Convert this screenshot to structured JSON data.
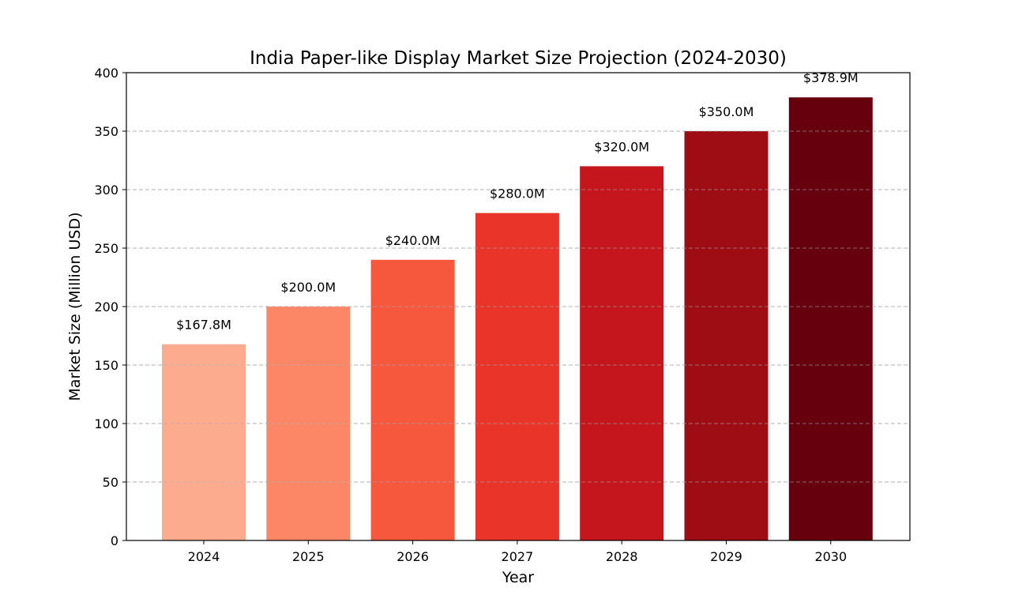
{
  "chart_data": {
    "type": "bar",
    "title": "India Paper-like Display Market Size Projection (2024-2030)",
    "xlabel": "Year",
    "ylabel": "Market Size (Million USD)",
    "categories": [
      "2024",
      "2025",
      "2026",
      "2027",
      "2028",
      "2029",
      "2030"
    ],
    "values": [
      167.8,
      200.0,
      240.0,
      280.0,
      320.0,
      350.0,
      378.9
    ],
    "data_labels": [
      "$167.8M",
      "$200.0M",
      "$240.0M",
      "$280.0M",
      "$320.0M",
      "$350.0M",
      "$378.9M"
    ],
    "colors": [
      "#fcab8f",
      "#fc8767",
      "#f6583e",
      "#e83429",
      "#c4161c",
      "#9e0d14",
      "#67000d"
    ],
    "ylim": [
      0,
      400
    ],
    "yticks": [
      0,
      50,
      100,
      150,
      200,
      250,
      300,
      350,
      400
    ],
    "grid": "y-dashed",
    "legend": "none"
  }
}
